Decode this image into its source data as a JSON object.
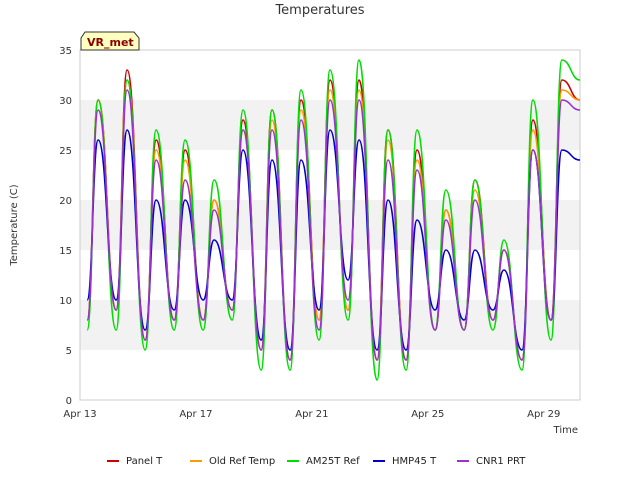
{
  "chart_data": {
    "type": "line",
    "title": "Temperatures",
    "xlabel": "Time",
    "ylabel": "Temperature (C)",
    "ylim": [
      0,
      35
    ],
    "yticks": [
      0,
      5,
      10,
      15,
      20,
      25,
      30,
      35
    ],
    "xlim": [
      "2024-04-13",
      "2024-04-30 06:00"
    ],
    "xticks": [
      {
        "date": "2024-04-13",
        "label": "Apr 13"
      },
      {
        "date": "2024-04-17",
        "label": "Apr 17"
      },
      {
        "date": "2024-04-21",
        "label": "Apr 21"
      },
      {
        "date": "2024-04-25",
        "label": "Apr 25"
      },
      {
        "date": "2024-04-29",
        "label": "Apr 29"
      }
    ],
    "grid": "alternating horizontal bands",
    "legend_position": "bottom",
    "annotation": "VR_met",
    "x": [
      "2024-04-13 06:00",
      "2024-04-13 15:00",
      "2024-04-14 06:00",
      "2024-04-14 15:00",
      "2024-04-15 06:00",
      "2024-04-15 15:00",
      "2024-04-16 06:00",
      "2024-04-16 15:00",
      "2024-04-17 06:00",
      "2024-04-17 15:00",
      "2024-04-18 06:00",
      "2024-04-18 15:00",
      "2024-04-19 06:00",
      "2024-04-19 15:00",
      "2024-04-20 06:00",
      "2024-04-20 15:00",
      "2024-04-21 06:00",
      "2024-04-21 15:00",
      "2024-04-22 06:00",
      "2024-04-22 15:00",
      "2024-04-23 06:00",
      "2024-04-23 15:00",
      "2024-04-24 06:00",
      "2024-04-24 15:00",
      "2024-04-25 06:00",
      "2024-04-25 15:00",
      "2024-04-26 06:00",
      "2024-04-26 15:00",
      "2024-04-27 06:00",
      "2024-04-27 15:00",
      "2024-04-28 06:00",
      "2024-04-28 15:00",
      "2024-04-29 06:00",
      "2024-04-29 15:00",
      "2024-04-30 06:00"
    ],
    "series": [
      {
        "name": "Panel T",
        "color": "#cc0000",
        "values": [
          8,
          30,
          9,
          33,
          6,
          26,
          8,
          25,
          8,
          20,
          9,
          28,
          5,
          29,
          4,
          30,
          8,
          32,
          9,
          32,
          4,
          27,
          4,
          25,
          7,
          19,
          7,
          22,
          8,
          15,
          4,
          28,
          8,
          32,
          30
        ]
      },
      {
        "name": "Old Ref Temp",
        "color": "#ff9900",
        "values": [
          8,
          30,
          9,
          32,
          6,
          25,
          8,
          24,
          8,
          20,
          9,
          27,
          5,
          28,
          4,
          29,
          8,
          31,
          9,
          31,
          4,
          26,
          4,
          24,
          7,
          19,
          7,
          21,
          8,
          15,
          4,
          27,
          8,
          31,
          30
        ]
      },
      {
        "name": "AM25T Ref",
        "color": "#00dd00",
        "values": [
          7,
          30,
          7,
          32,
          5,
          27,
          7,
          26,
          7,
          22,
          8,
          29,
          3,
          29,
          3,
          31,
          6,
          33,
          8,
          34,
          2,
          27,
          3,
          27,
          7,
          21,
          7,
          22,
          7,
          16,
          3,
          30,
          6,
          34,
          32
        ]
      },
      {
        "name": "HMP45 T",
        "color": "#0000cc",
        "values": [
          10,
          26,
          10,
          27,
          7,
          20,
          9,
          20,
          10,
          16,
          10,
          25,
          6,
          24,
          5,
          24,
          9,
          27,
          12,
          26,
          5,
          20,
          5,
          18,
          9,
          15,
          8,
          15,
          9,
          13,
          5,
          25,
          8,
          25,
          24
        ]
      },
      {
        "name": "CNR1 PRT",
        "color": "#9933cc",
        "values": [
          8,
          29,
          9,
          31,
          6,
          24,
          8,
          22,
          8,
          19,
          9,
          27,
          5,
          27,
          4,
          28,
          7,
          30,
          10,
          30,
          4,
          24,
          4,
          23,
          7,
          18,
          7,
          20,
          8,
          15,
          4,
          25,
          8,
          30,
          29
        ]
      }
    ]
  }
}
